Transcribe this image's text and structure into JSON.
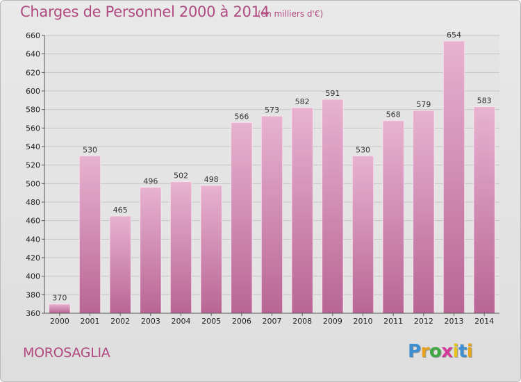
{
  "title": "Charges de Personnel 2000 à 2014",
  "subtitle": "(en milliers d'€)",
  "commune": "MOROSAGLIA",
  "brand": {
    "letters": [
      "P",
      "r",
      "o",
      "x",
      "i",
      "t",
      "i"
    ],
    "colors": [
      "#3d8fd1",
      "#e8a21d",
      "#3fa843",
      "#d53b9a",
      "#e8c21d",
      "#3d8fd1",
      "#e8a21d"
    ]
  },
  "colors": {
    "bar_light": "#e8b2d0",
    "bar_dark": "#b86694",
    "text_accent": "#b04a80"
  },
  "chart_data": {
    "type": "bar",
    "categories": [
      "2000",
      "2001",
      "2002",
      "2003",
      "2004",
      "2005",
      "2006",
      "2007",
      "2008",
      "2009",
      "2010",
      "2011",
      "2012",
      "2013",
      "2014"
    ],
    "values": [
      370,
      530,
      465,
      496,
      502,
      498,
      566,
      573,
      582,
      591,
      530,
      568,
      579,
      654,
      583
    ],
    "ylim": [
      360,
      660
    ],
    "yticks": [
      360,
      380,
      400,
      420,
      440,
      460,
      480,
      500,
      520,
      540,
      560,
      580,
      600,
      620,
      640,
      660
    ],
    "grid": true,
    "legend": "none"
  }
}
